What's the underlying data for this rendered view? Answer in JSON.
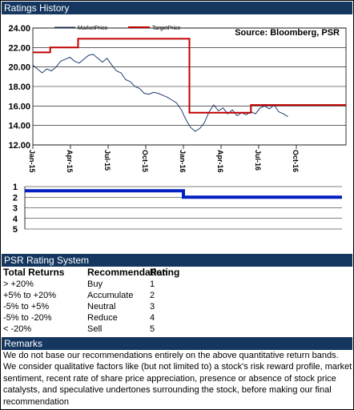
{
  "sections": {
    "ratings_title": "Ratings History",
    "psr_title": "PSR Rating System",
    "remarks_title": "Remarks"
  },
  "chart_data": [
    {
      "type": "line",
      "title": "",
      "source": "Source: Bloomberg, PSR",
      "ylim": [
        12,
        24
      ],
      "yticks": [
        "24.00",
        "22.00",
        "20.00",
        "18.00",
        "16.00",
        "14.00",
        "12.00"
      ],
      "ytick_values": [
        24,
        22,
        20,
        18,
        16,
        14,
        12
      ],
      "xticks": [
        "Jan-15",
        "Apr-15",
        "Jul-15",
        "Oct-15",
        "Jan-16",
        "Apr-16",
        "Jul-16",
        "Oct-16"
      ],
      "grid": true,
      "legend": "top-left",
      "series": [
        {
          "name": "MarketPrice",
          "color": "#1f3b6e",
          "values": [
            [
              0,
              20.2
            ],
            [
              4,
              19.8
            ],
            [
              8,
              19.4
            ],
            [
              12,
              19.8
            ],
            [
              16,
              19.6
            ],
            [
              20,
              20.0
            ],
            [
              24,
              20.6
            ],
            [
              28,
              20.8
            ],
            [
              32,
              21.0
            ],
            [
              36,
              20.6
            ],
            [
              40,
              20.4
            ],
            [
              44,
              20.8
            ],
            [
              48,
              21.2
            ],
            [
              52,
              21.3
            ],
            [
              56,
              20.9
            ],
            [
              60,
              20.5
            ],
            [
              64,
              20.9
            ],
            [
              68,
              20.2
            ],
            [
              72,
              19.6
            ],
            [
              76,
              19.4
            ],
            [
              80,
              18.7
            ],
            [
              84,
              18.5
            ],
            [
              88,
              18.0
            ],
            [
              92,
              17.8
            ],
            [
              96,
              17.3
            ],
            [
              100,
              17.2
            ],
            [
              104,
              17.4
            ],
            [
              108,
              17.3
            ],
            [
              112,
              17.1
            ],
            [
              116,
              16.9
            ],
            [
              120,
              16.6
            ],
            [
              124,
              16.3
            ],
            [
              128,
              15.6
            ],
            [
              132,
              14.6
            ],
            [
              136,
              13.8
            ],
            [
              140,
              13.4
            ],
            [
              144,
              13.7
            ],
            [
              148,
              14.3
            ],
            [
              152,
              15.4
            ],
            [
              156,
              16.1
            ],
            [
              160,
              15.5
            ],
            [
              164,
              15.8
            ],
            [
              168,
              15.2
            ],
            [
              172,
              15.6
            ],
            [
              176,
              15.0
            ],
            [
              180,
              15.3
            ],
            [
              184,
              15.1
            ],
            [
              188,
              15.4
            ],
            [
              192,
              15.2
            ],
            [
              196,
              15.8
            ],
            [
              200,
              16.0
            ],
            [
              204,
              15.7
            ],
            [
              208,
              16.1
            ],
            [
              212,
              15.4
            ],
            [
              216,
              15.2
            ],
            [
              220,
              14.9
            ]
          ]
        },
        {
          "name": "TargetPrice",
          "color": "#c00000",
          "values": [
            [
              0,
              21.5
            ],
            [
              15,
              21.5
            ],
            [
              15,
              22.0
            ],
            [
              39,
              22.0
            ],
            [
              39,
              22.9
            ],
            [
              135,
              22.9
            ],
            [
              135,
              15.3
            ],
            [
              188,
              15.3
            ],
            [
              188,
              16.1
            ],
            [
              270,
              16.1
            ]
          ]
        }
      ]
    },
    {
      "type": "line",
      "title": "",
      "ylim": [
        1,
        5
      ],
      "yticks": [
        "1",
        "2",
        "3",
        "4",
        "5"
      ],
      "ytick_values": [
        1,
        2,
        3,
        4,
        5
      ],
      "series": [
        {
          "name": "",
          "color": "#0020c0",
          "values": [
            [
              0,
              1.4
            ],
            [
              135,
              1.4
            ],
            [
              135,
              2.0
            ],
            [
              270,
              2.0
            ]
          ]
        }
      ]
    }
  ],
  "psr_table": {
    "headers": [
      "Total Returns",
      "Recommendation",
      "Rating"
    ],
    "rows": [
      [
        "> +20%",
        "Buy",
        "1"
      ],
      [
        "+5% to +20%",
        "Accumulate",
        "2"
      ],
      [
        "-5% to +5%",
        "Neutral",
        "3"
      ],
      [
        "-5% to -20%",
        "Reduce",
        "4"
      ],
      [
        "< -20%",
        "Sell",
        "5"
      ]
    ]
  },
  "remarks": {
    "line1": "We do not base our recommendations entirely on the  above quantitative return bands.",
    "line2": "We consider qualitative factors like (but not limited to) a stock's risk reward profile, market sentiment, recent rate of share price appreciation, presence or absence of stock price catalysts, and speculative undertones surrounding the stock, before making our final recommendation"
  }
}
